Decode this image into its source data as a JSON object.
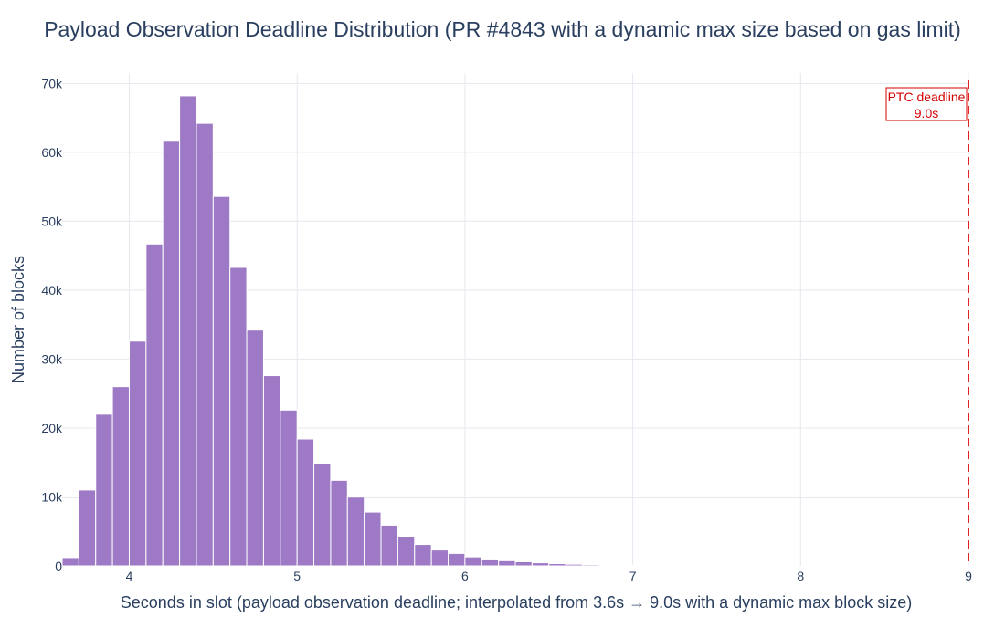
{
  "chart_data": {
    "type": "bar",
    "title": "Payload Observation Deadline Distribution (PR #4843 with a dynamic max size based on gas limit)",
    "xlabel": "Seconds in slot (payload observation deadline; interpolated from 3.6s → 9.0s with a dynamic max block size)",
    "ylabel": "Number of blocks",
    "xlim": [
      3.6,
      9.0
    ],
    "ylim": [
      0,
      71500
    ],
    "x_ticks": [
      {
        "value": 4,
        "label": "4"
      },
      {
        "value": 5,
        "label": "5"
      },
      {
        "value": 6,
        "label": "6"
      },
      {
        "value": 7,
        "label": "7"
      },
      {
        "value": 8,
        "label": "8"
      },
      {
        "value": 9,
        "label": "9"
      }
    ],
    "y_ticks": [
      {
        "value": 0,
        "label": "0"
      },
      {
        "value": 10000,
        "label": "10k"
      },
      {
        "value": 20000,
        "label": "20k"
      },
      {
        "value": 30000,
        "label": "30k"
      },
      {
        "value": 40000,
        "label": "40k"
      },
      {
        "value": 50000,
        "label": "50k"
      },
      {
        "value": 60000,
        "label": "60k"
      },
      {
        "value": 70000,
        "label": "70k"
      }
    ],
    "bin_width": 0.1,
    "bin_starts": [
      3.6,
      3.7,
      3.8,
      3.9,
      4.0,
      4.1,
      4.2,
      4.3,
      4.4,
      4.5,
      4.6,
      4.7,
      4.8,
      4.9,
      5.0,
      5.1,
      5.2,
      5.3,
      5.4,
      5.5,
      5.6,
      5.7,
      5.8,
      5.9,
      6.0,
      6.1,
      6.2,
      6.3,
      6.4,
      6.5,
      6.6,
      6.7,
      6.8,
      6.9,
      7.0,
      7.1,
      7.2,
      7.3,
      7.4,
      7.5,
      7.6,
      7.7,
      7.8
    ],
    "values": [
      1200,
      11000,
      22000,
      26000,
      32600,
      46700,
      61600,
      68200,
      64200,
      53600,
      43300,
      34200,
      27600,
      22600,
      18400,
      14900,
      12400,
      10100,
      7800,
      5900,
      4300,
      3100,
      2300,
      1800,
      1300,
      1000,
      750,
      600,
      450,
      330,
      240,
      170,
      130,
      90,
      70,
      50,
      40,
      30,
      20,
      15,
      10,
      8,
      5
    ],
    "bar_color": "#9e79c5",
    "grid": true,
    "legend": "none",
    "annotation": {
      "x": 9.0,
      "line_color": "#e02424",
      "line_style": "dashed",
      "text_line1": "PTC deadline",
      "text_line2": "9.0s",
      "text_color": "#d40000"
    }
  }
}
